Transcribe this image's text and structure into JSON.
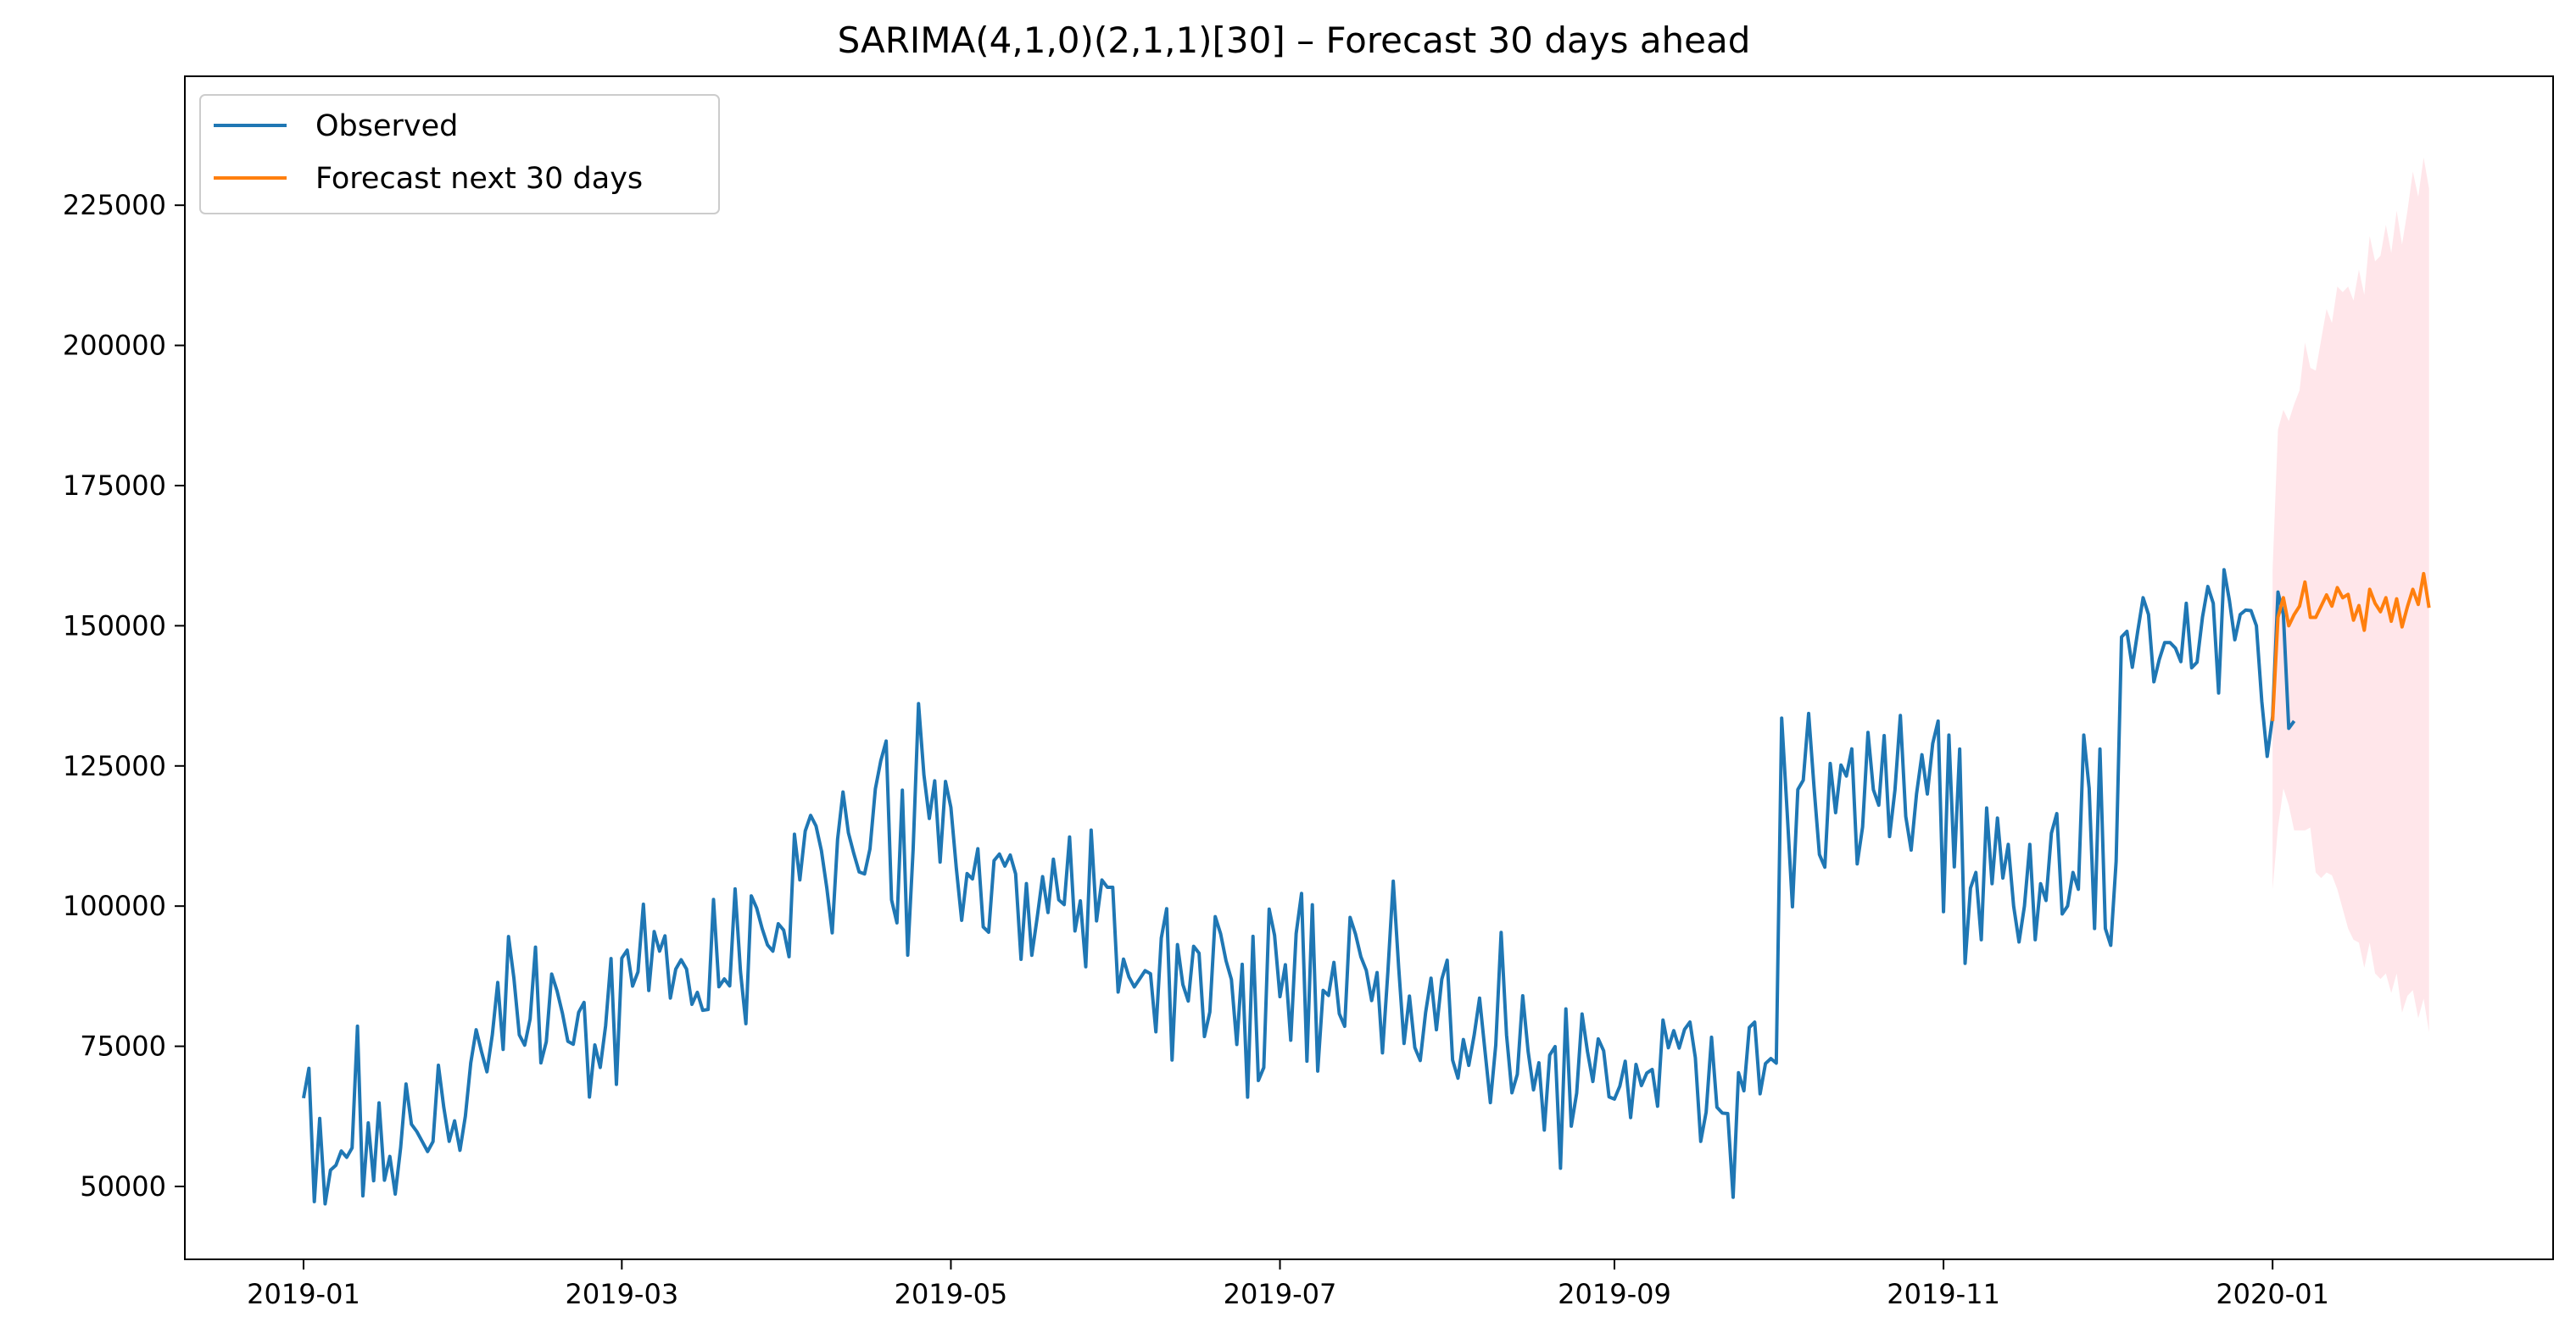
{
  "chart_data": {
    "type": "line",
    "title": "SARIMA(4,1,0)(2,1,1)[30] – Forecast 30 days ahead",
    "xlabel": "",
    "ylabel": "",
    "xlim": [
      "2018-12-10",
      "2020-02-22"
    ],
    "ylim": [
      37000,
      248000
    ],
    "x_ticks": [
      "2019-01-01",
      "2019-03-01",
      "2019-05-01",
      "2019-07-01",
      "2019-09-01",
      "2019-11-01",
      "2020-01-01"
    ],
    "x_tick_labels": [
      "2019-01",
      "2019-03",
      "2019-05",
      "2019-07",
      "2019-09",
      "2019-11",
      "2020-01"
    ],
    "y_ticks": [
      50000,
      75000,
      100000,
      125000,
      150000,
      175000,
      200000,
      225000
    ],
    "grid": false,
    "legend_placement": "top-left",
    "colors": {
      "observed": "#1f77b4",
      "forecast": "#ff7f0e",
      "interval": "#ffc0cb"
    },
    "series": [
      {
        "name": "Observed",
        "x_start": "2019-01-01",
        "frequency": "daily",
        "values": [
          65745,
          71067,
          47293,
          62127,
          46891,
          52911,
          53774,
          56326,
          55202,
          56876,
          78584,
          48323,
          61331,
          51018,
          64914,
          51109,
          55356,
          48645,
          56915,
          68267,
          61103,
          59786,
          58020,
          56234,
          58000,
          71617,
          64100,
          58052,
          61696,
          56442,
          62530,
          72046,
          77939,
          74009,
          70453,
          77081,
          86376,
          74439,
          94567,
          87119,
          77021,
          75200,
          79855,
          92670,
          72034,
          75814,
          87886,
          84859,
          80848,
          75880,
          75360,
          81050,
          82823,
          65937,
          75238,
          71229,
          78683,
          90645,
          68215,
          90722,
          92150,
          85734,
          88271,
          100330,
          84948,
          95452,
          91961,
          94698,
          83600,
          88760,
          90436,
          88763,
          82478,
          84617,
          81413,
          81572,
          101187,
          85609,
          87009,
          85769,
          103078,
          88302,
          79035,
          101829,
          99643,
          96047,
          93087,
          91960,
          96853,
          95715,
          90976,
          112811,
          104676,
          113391,
          116174,
          114289,
          109885,
          103234,
          95228,
          111925,
          120349,
          113087,
          109383,
          106091,
          105741,
          110208,
          120911,
          125900,
          129430,
          101113,
          97008,
          120676,
          91250,
          110116,
          136109,
          123400,
          115629,
          122337,
          107849,
          122225,
          117596,
          106844,
          97467,
          105799,
          104850,
          110229,
          96270,
          95342,
          108109,
          109281,
          107137,
          109104,
          105740,
          90513,
          104020,
          91220,
          97985,
          105250,
          98856,
          108367,
          101116,
          100263,
          112325,
          95564,
          100930,
          89182,
          113564,
          97360,
          104654,
          103360,
          103359,
          84672,
          90543,
          87380,
          85587,
          87033,
          88487,
          87937,
          77582,
          94300,
          99537,
          72547,
          93127,
          86015,
          83062,
          92837,
          91607,
          76742,
          81101,
          98114,
          95057,
          90260,
          86907,
          75325,
          89618,
          65921,
          94598,
          68888,
          71206,
          99458,
          94789,
          83850,
          89542,
          76081,
          95108,
          102257,
          72342,
          100240,
          70580,
          84970,
          84067,
          89955,
          80797,
          78556,
          97988,
          95030,
          90957,
          88539,
          83155,
          88149,
          73823,
          88227,
          104453,
          89154,
          75498,
          83955,
          74774,
          72460,
          81034,
          87144,
          77952,
          86960,
          90347,
          72547,
          69321,
          76211,
          71590,
          76994,
          83597,
          74213,
          64952,
          75216,
          95296,
          77014,
          66706,
          70003,
          84009,
          74097,
          67233,
          72061,
          60052,
          73410,
          74941,
          53246,
          81661,
          60744,
          66632,
          80753,
          74076,
          68724,
          76319,
          74191,
          65983,
          65580,
          67891,
          72332,
          62282,
          71763,
          67999,
          70230,
          70865,
          64311,
          79678,
          74739,
          77786,
          74686,
          78006,
          79327,
          72953,
          58038,
          63271,
          76610,
          64128,
          63092,
          62991,
          48066,
          70285,
          67061,
          78353,
          79306,
          66524,
          71927,
          72803,
          71993,
          133533,
          117059,
          99877,
          120790,
          122457,
          134357,
          121181,
          109189,
          106941,
          125446,
          116665,
          125154,
          123201,
          128043,
          107526,
          114102,
          130980,
          120765,
          118000,
          130400,
          112400,
          120700,
          134000,
          116000,
          110000,
          120000,
          127000,
          120000,
          129000,
          133000,
          99000,
          130500,
          107000,
          128000,
          89795,
          103200,
          106000,
          94000,
          117500,
          104000,
          115700,
          105000,
          111000,
          100000,
          93600,
          100000,
          111000,
          94000,
          104000,
          101000,
          113000,
          116500,
          98600,
          100000,
          106000,
          103000,
          130500,
          121000,
          96000,
          128000,
          96000,
          93000,
          108000,
          148000,
          149000,
          142600,
          149000,
          155000,
          152000,
          140000,
          144000,
          147000,
          147000,
          146000,
          143600,
          154000,
          142500,
          143500,
          151500,
          157000,
          154000,
          138000,
          160000,
          154500,
          147500,
          152000,
          152800,
          152700,
          150000,
          136500,
          126700,
          133800,
          156000,
          152000,
          131700,
          133000
        ]
      },
      {
        "name": "Forecast next 30 days",
        "x_start": "2020-01-01",
        "frequency": "daily",
        "values": [
          133000,
          151500,
          155000,
          150000,
          152000,
          153500,
          157800,
          151500,
          151500,
          153500,
          155500,
          153500,
          156800,
          155000,
          155600,
          151000,
          153600,
          149200,
          156500,
          154000,
          152500,
          155000,
          150800,
          154800,
          149800,
          153400,
          156500,
          153800,
          159300,
          153200
        ],
        "lower": [
          103000,
          114000,
          121000,
          118000,
          113500,
          113500,
          113500,
          114000,
          106000,
          105000,
          106000,
          105500,
          103000,
          99500,
          96000,
          94000,
          93500,
          89000,
          93500,
          88000,
          87000,
          88000,
          84500,
          88000,
          81000,
          84000,
          85000,
          80000,
          83500,
          77500
        ],
        "upper": [
          160000,
          185000,
          188500,
          186500,
          189500,
          192000,
          200500,
          196000,
          195500,
          201000,
          206500,
          204000,
          210500,
          209500,
          210500,
          208000,
          213500,
          209000,
          219500,
          215000,
          216000,
          221500,
          216500,
          224000,
          218000,
          224000,
          231000,
          226500,
          233500,
          228000
        ]
      }
    ]
  }
}
